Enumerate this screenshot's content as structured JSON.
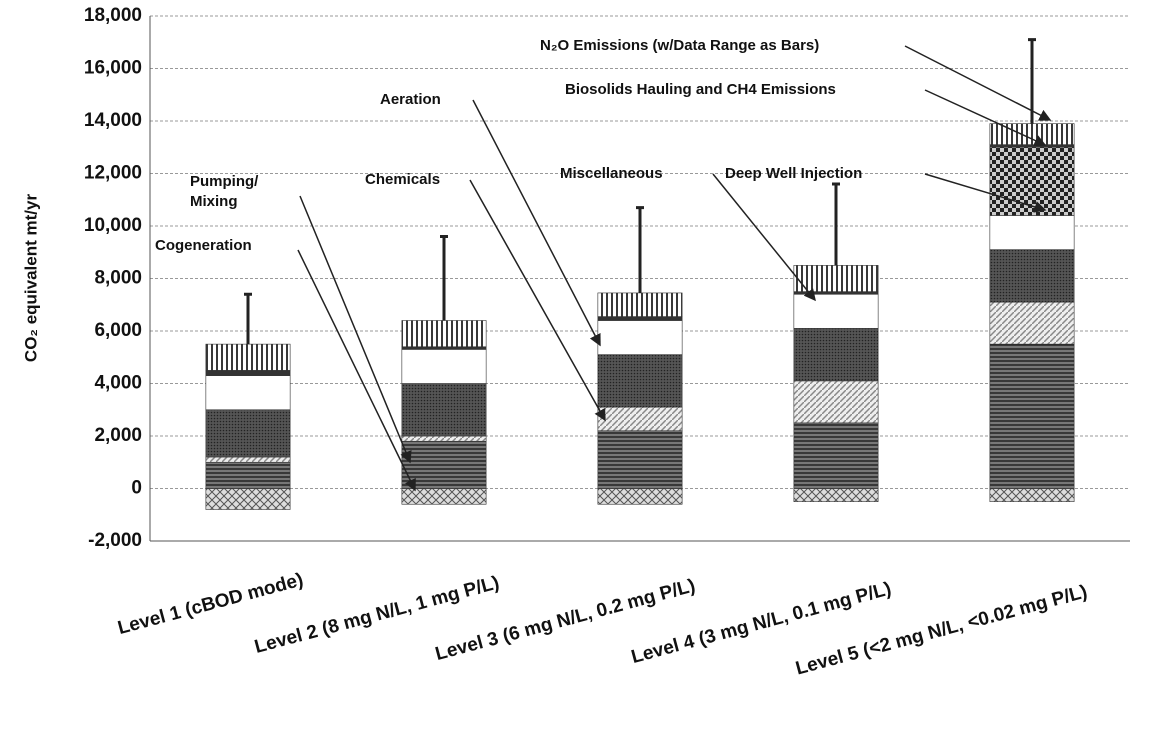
{
  "chart_data": {
    "type": "stacked_bar",
    "y_label": "CO₂ equivalent mt/yr",
    "categories": [
      "Level 1 (cBOD mode)",
      "Level 2 (8 mg N/L, 1 mg P/L)",
      "Level 3 (6 mg N/L, 0.2 mg P/L)",
      "Level 4 (3 mg N/L, 0.1 mg P/L)",
      "Level 5 (<2 mg N/L, <0.02 mg P/L)"
    ],
    "series": [
      {
        "name": "Cogeneration",
        "color": "#bbbbbb",
        "values": [
          -800,
          -600,
          -600,
          -500,
          -500
        ]
      },
      {
        "name": "Pumping/ Mixing",
        "color": "#555555",
        "values": [
          1000,
          1800,
          2200,
          2500,
          5500
        ]
      },
      {
        "name": "Chemicals",
        "color": "#cccccc",
        "values": [
          200,
          200,
          900,
          1600,
          1600
        ]
      },
      {
        "name": "Aeration",
        "color": "#444444",
        "values": [
          1800,
          2000,
          2000,
          2000,
          2000
        ]
      },
      {
        "name": "Miscellaneous",
        "color": "#ffffff",
        "values": [
          1300,
          1300,
          1300,
          1300,
          1300
        ]
      },
      {
        "name": "Deep Well Injection",
        "color": "#666666",
        "values": [
          0,
          0,
          0,
          0,
          2600
        ]
      },
      {
        "name": "Biosolids Hauling and CH4 Emissions",
        "color": "#333333",
        "values": [
          200,
          100,
          150,
          100,
          100
        ]
      },
      {
        "name": "N₂O Emissions (w/Data Range as Bars)",
        "color": "#999999",
        "values": [
          1000,
          1000,
          900,
          1000,
          800
        ],
        "errors": [
          1900,
          3200,
          3250,
          3100,
          3200
        ]
      }
    ],
    "ylim": [
      -2000,
      18000
    ],
    "yticks": [
      {
        "value": -2000,
        "label": "-2,000"
      },
      0,
      {
        "value": 2000,
        "label": "2,000"
      },
      {
        "value": 4000,
        "label": "4,000"
      },
      {
        "value": 6000,
        "label": "6,000"
      },
      {
        "value": 8000,
        "label": "8,000"
      },
      {
        "value": 10000,
        "label": "10,000"
      },
      {
        "value": 12000,
        "label": "12,000"
      },
      {
        "value": 14000,
        "label": "14,000"
      },
      {
        "value": 16000,
        "label": "16,000"
      },
      {
        "value": 18000,
        "label": "18,000"
      }
    ],
    "grid": true
  }
}
